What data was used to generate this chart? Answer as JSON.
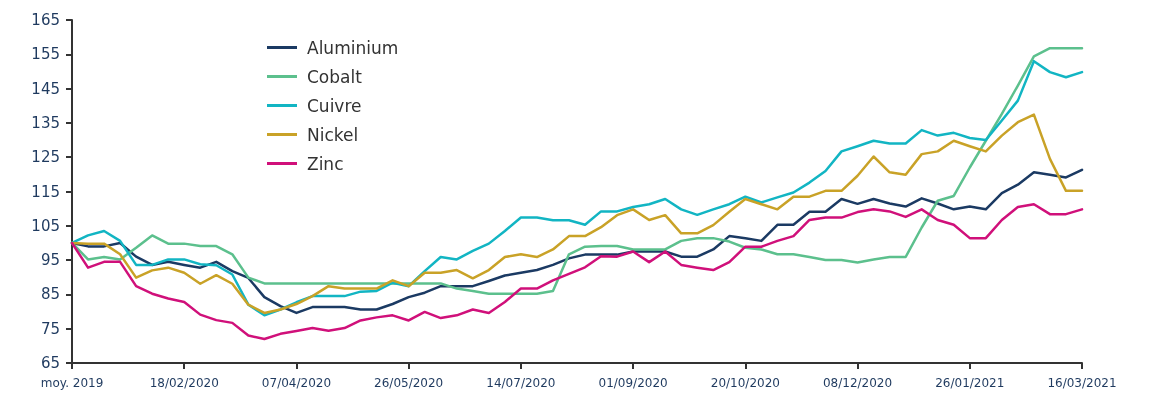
{
  "chart_data": {
    "type": "line",
    "categories": [
      "moy. 2019",
      null,
      null,
      null,
      null,
      null,
      null,
      "18/02/2020",
      null,
      null,
      null,
      null,
      null,
      null,
      "07/04/2020",
      null,
      null,
      null,
      null,
      null,
      null,
      "26/05/2020",
      null,
      null,
      null,
      null,
      null,
      null,
      "14/07/2020",
      null,
      null,
      null,
      null,
      null,
      null,
      "01/09/2020",
      null,
      null,
      null,
      null,
      null,
      null,
      "20/10/2020",
      null,
      null,
      null,
      null,
      null,
      null,
      "08/12/2020",
      null,
      null,
      null,
      null,
      null,
      null,
      "26/01/2021",
      null,
      null,
      null,
      null,
      null,
      null,
      "16/03/2021"
    ],
    "series": [
      {
        "name": "Aluminium",
        "color": "#1b3a63",
        "values": [
          100,
          99,
          99,
          100,
          96,
          93.6,
          94.5,
          93.6,
          92.8,
          94.5,
          91.8,
          89.8,
          84.2,
          81.6,
          79.6,
          81.3,
          81.3,
          81.3,
          80.6,
          80.6,
          82.2,
          84.2,
          85.5,
          87.4,
          87.4,
          87.4,
          88.9,
          90.5,
          91.3,
          92.1,
          93.6,
          95.5,
          96.6,
          96.6,
          96.6,
          97.5,
          97.5,
          97.5,
          96,
          96,
          98.1,
          102,
          101.4,
          100.6,
          105.3,
          105.3,
          109.1,
          109.1,
          112.8,
          111.4,
          112.8,
          111.5,
          110.6,
          113,
          111.5,
          109.8,
          110.6,
          109.8,
          114.5,
          117,
          120.6,
          119.9,
          119.1,
          121.3
        ]
      },
      {
        "name": "Cobalt",
        "color": "#5cc08d",
        "values": [
          100,
          95.2,
          95.9,
          95.2,
          98.6,
          102.2,
          99.8,
          99.8,
          99.1,
          99.1,
          96.7,
          89.9,
          88.2,
          88.2,
          88.2,
          88.2,
          88.2,
          88.2,
          88.2,
          88.2,
          88.2,
          88.2,
          88.2,
          88.2,
          86.7,
          86,
          85.2,
          85.2,
          85.2,
          85.2,
          86,
          96.7,
          98.9,
          99.1,
          99.1,
          98.1,
          98.1,
          98.1,
          100.6,
          101.4,
          101.4,
          100.4,
          98.6,
          98.1,
          96.7,
          96.7,
          95.9,
          95,
          95,
          94.3,
          95.2,
          95.9,
          95.9,
          104.5,
          112.3,
          113.7,
          122,
          129.8,
          137.6,
          145.9,
          154.4,
          156.8,
          156.8,
          156.8
        ]
      },
      {
        "name": "Cuivre",
        "color": "#12b5c3",
        "values": [
          100,
          102.2,
          103.5,
          100.6,
          93.6,
          93.6,
          95.2,
          95.2,
          93.8,
          93.5,
          90.8,
          82,
          78.9,
          80.6,
          82.7,
          84.5,
          84.5,
          84.5,
          85.8,
          86,
          88.4,
          87.4,
          91.8,
          95.9,
          95.2,
          97.7,
          99.8,
          103.5,
          107.4,
          107.4,
          106.6,
          106.6,
          105.3,
          109.2,
          109.2,
          110.5,
          111.3,
          112.8,
          109.8,
          108.2,
          109.8,
          111.3,
          113.5,
          111.8,
          113.3,
          114.7,
          117.6,
          121,
          126.7,
          128.2,
          129.8,
          129,
          129,
          132.9,
          131.3,
          132.1,
          130.6,
          130,
          135.7,
          141.5,
          153,
          149.8,
          148.3,
          149.8
        ]
      },
      {
        "name": "Nickel",
        "color": "#c9a227",
        "values": [
          100,
          99.8,
          99.8,
          96.7,
          89.9,
          92,
          92.8,
          91.3,
          88.1,
          90.6,
          88.1,
          82,
          79.6,
          80.6,
          82.2,
          84.5,
          87.4,
          86.7,
          86.7,
          86.7,
          89.1,
          87.4,
          91.3,
          91.3,
          92.1,
          89.7,
          92.1,
          95.9,
          96.7,
          95.9,
          98.1,
          102,
          102,
          104.6,
          108.1,
          109.8,
          106.7,
          108.1,
          102.8,
          102.8,
          105.2,
          109.1,
          112.8,
          111.3,
          109.8,
          113.5,
          113.5,
          115.2,
          115.2,
          119.6,
          125.2,
          120.6,
          119.9,
          125.9,
          126.7,
          129.8,
          128.2,
          126.7,
          131.3,
          135.2,
          137.4,
          124.5,
          115.2,
          115.2
        ]
      },
      {
        "name": "Zinc",
        "color": "#d0107a",
        "values": [
          100,
          92.8,
          94.5,
          94.5,
          87.4,
          85.2,
          83.8,
          82.8,
          79.1,
          77.5,
          76.7,
          73,
          72,
          73.5,
          74.3,
          75.2,
          74.4,
          75.2,
          77.4,
          78.3,
          78.9,
          77.4,
          79.9,
          78.1,
          78.9,
          80.6,
          79.6,
          82.8,
          86.7,
          86.7,
          89.1,
          91,
          92.9,
          96.1,
          96,
          97.5,
          94.4,
          97.5,
          93.6,
          92.8,
          92.1,
          94.4,
          98.9,
          98.9,
          100.6,
          102,
          106.7,
          107.4,
          107.4,
          109,
          109.8,
          109.2,
          107.6,
          109.8,
          106.7,
          105.3,
          101.4,
          101.4,
          106.7,
          110.5,
          111.3,
          108.4,
          108.4,
          109.8
        ]
      }
    ],
    "ylim": [
      65,
      165
    ],
    "yticks": [
      65,
      75,
      85,
      95,
      105,
      115,
      125,
      135,
      145,
      155,
      165
    ],
    "grid": false,
    "legend": "top left",
    "marker": "none",
    "line_style": "solid"
  }
}
